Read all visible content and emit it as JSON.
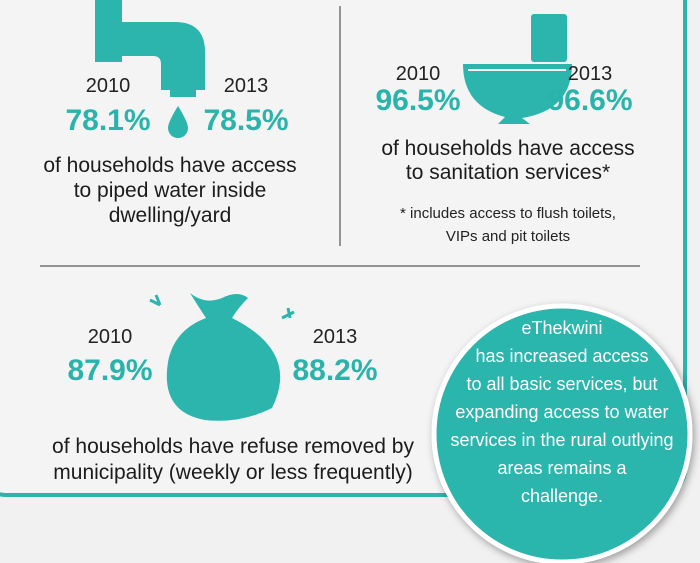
{
  "water": {
    "year_from": "2010",
    "value_from": "78.1%",
    "year_to": "2013",
    "value_to": "78.5%",
    "caption": [
      "of households have access",
      "to piped water inside",
      "dwelling/yard"
    ]
  },
  "sanitation": {
    "year_from": "2010",
    "value_from": "96.5%",
    "year_to": "2013",
    "value_to": "96.6%",
    "caption": [
      "of households have access",
      "to sanitation services*"
    ],
    "note": [
      "* includes access to flush toilets,",
      "VIPs and pit toilets"
    ]
  },
  "refuse": {
    "year_from": "2010",
    "value_from": "87.9%",
    "year_to": "2013",
    "value_to": "88.2%",
    "caption": [
      "of households have refuse removed by",
      "municipality (weekly or less frequently)"
    ]
  },
  "callout": [
    "eThekwini",
    "has increased access",
    "to all basic services, but",
    "expanding access to water",
    "services in the rural outlying",
    "areas remains a",
    "challenge."
  ]
}
